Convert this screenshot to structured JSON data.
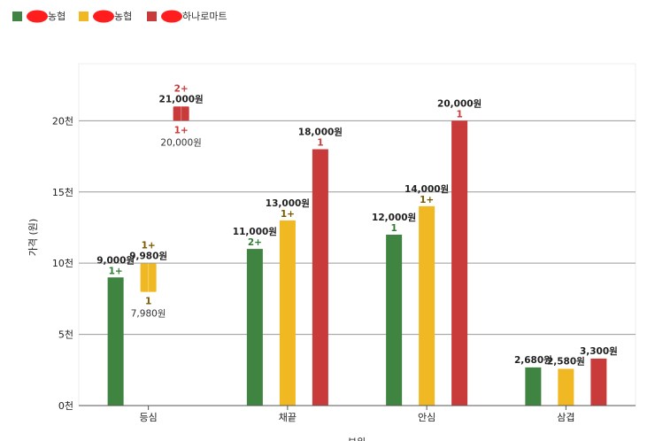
{
  "chart_data": {
    "type": "bar",
    "title": "",
    "xlabel": "부위",
    "ylabel": "가격 (원)",
    "ylim": [
      0,
      24000
    ],
    "yticks": [
      {
        "value": 0,
        "label": "0천"
      },
      {
        "value": 5000,
        "label": "5천"
      },
      {
        "value": 10000,
        "label": "10천"
      },
      {
        "value": 15000,
        "label": "15천"
      },
      {
        "value": 20000,
        "label": "20천"
      }
    ],
    "grid": true,
    "legend_position": "top-left",
    "categories": [
      "등심",
      "채끝",
      "안심",
      "삼겹"
    ],
    "series": [
      {
        "name": "농협",
        "color": "#3f8440",
        "points": [
          {
            "value": 9000,
            "label": "9,000원",
            "grade": "1+"
          },
          {
            "value": 11000,
            "label": "11,000원",
            "grade": "2+"
          },
          {
            "value": 12000,
            "label": "12,000원",
            "grade": "1"
          },
          {
            "value": 2680,
            "label": "2,680원",
            "grade": ""
          }
        ]
      },
      {
        "name": "농협",
        "color": "#f0b823",
        "points": [
          {
            "low": 7980,
            "high": 9980,
            "label": "9,980원",
            "grade": "1+",
            "low_label": "7,980원",
            "low_grade": "1"
          },
          {
            "value": 13000,
            "label": "13,000원",
            "grade": "1+"
          },
          {
            "value": 14000,
            "label": "14,000원",
            "grade": "1+"
          },
          {
            "value": 2580,
            "label": "2,580원",
            "grade": ""
          }
        ]
      },
      {
        "name": "하나로마트",
        "color": "#c93a3a",
        "points": [
          {
            "low": 20000,
            "high": 21000,
            "label": "21,000원",
            "grade": "2+",
            "low_label": "20,000원",
            "low_grade": "1+"
          },
          {
            "value": 18000,
            "label": "18,000원",
            "grade": "1"
          },
          {
            "value": 20000,
            "label": "20,000원",
            "grade": "1"
          },
          {
            "value": 3300,
            "label": "3,300원",
            "grade": ""
          }
        ]
      }
    ]
  }
}
